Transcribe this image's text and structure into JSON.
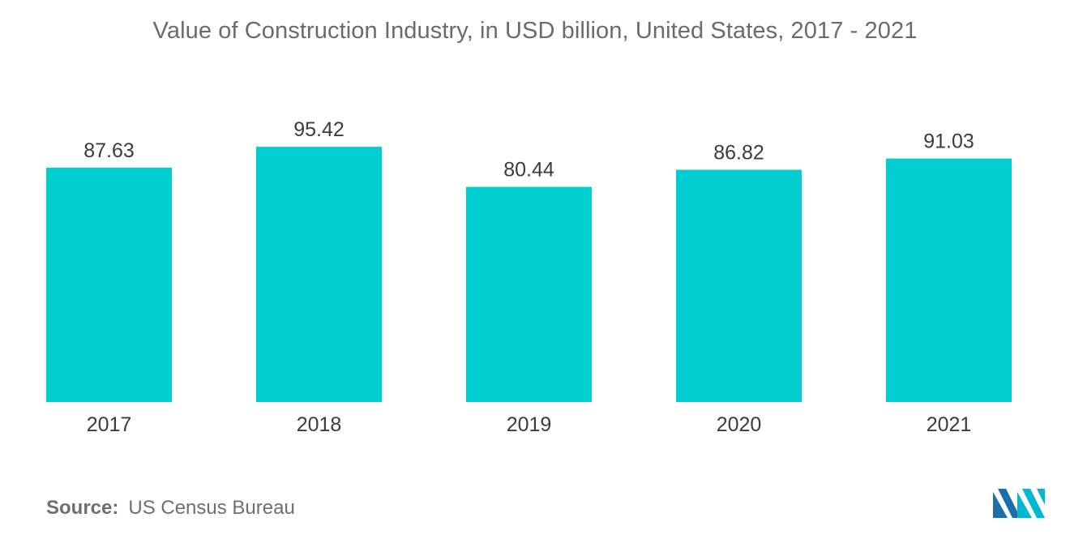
{
  "chart_data": {
    "type": "bar",
    "title": "Value of Construction Industry, in USD billion, United States, 2017 - 2021",
    "xlabel": "",
    "ylabel": "",
    "categories": [
      "2017",
      "2018",
      "2019",
      "2020",
      "2021"
    ],
    "values": [
      87.63,
      95.42,
      80.44,
      86.82,
      91.03
    ],
    "value_labels": [
      "87.63",
      "95.42",
      "80.44",
      "86.82",
      "91.03"
    ],
    "ylim": [
      0,
      100
    ],
    "grid": false,
    "legend": "none",
    "bar_color": "#00CED1"
  },
  "footer": {
    "source_label": "Source:",
    "source_value": "US Census Bureau"
  },
  "logo": {
    "icon": "mordor-intelligence-logo-icon",
    "colors": [
      "#1A6FA8",
      "#00B8D4"
    ]
  }
}
